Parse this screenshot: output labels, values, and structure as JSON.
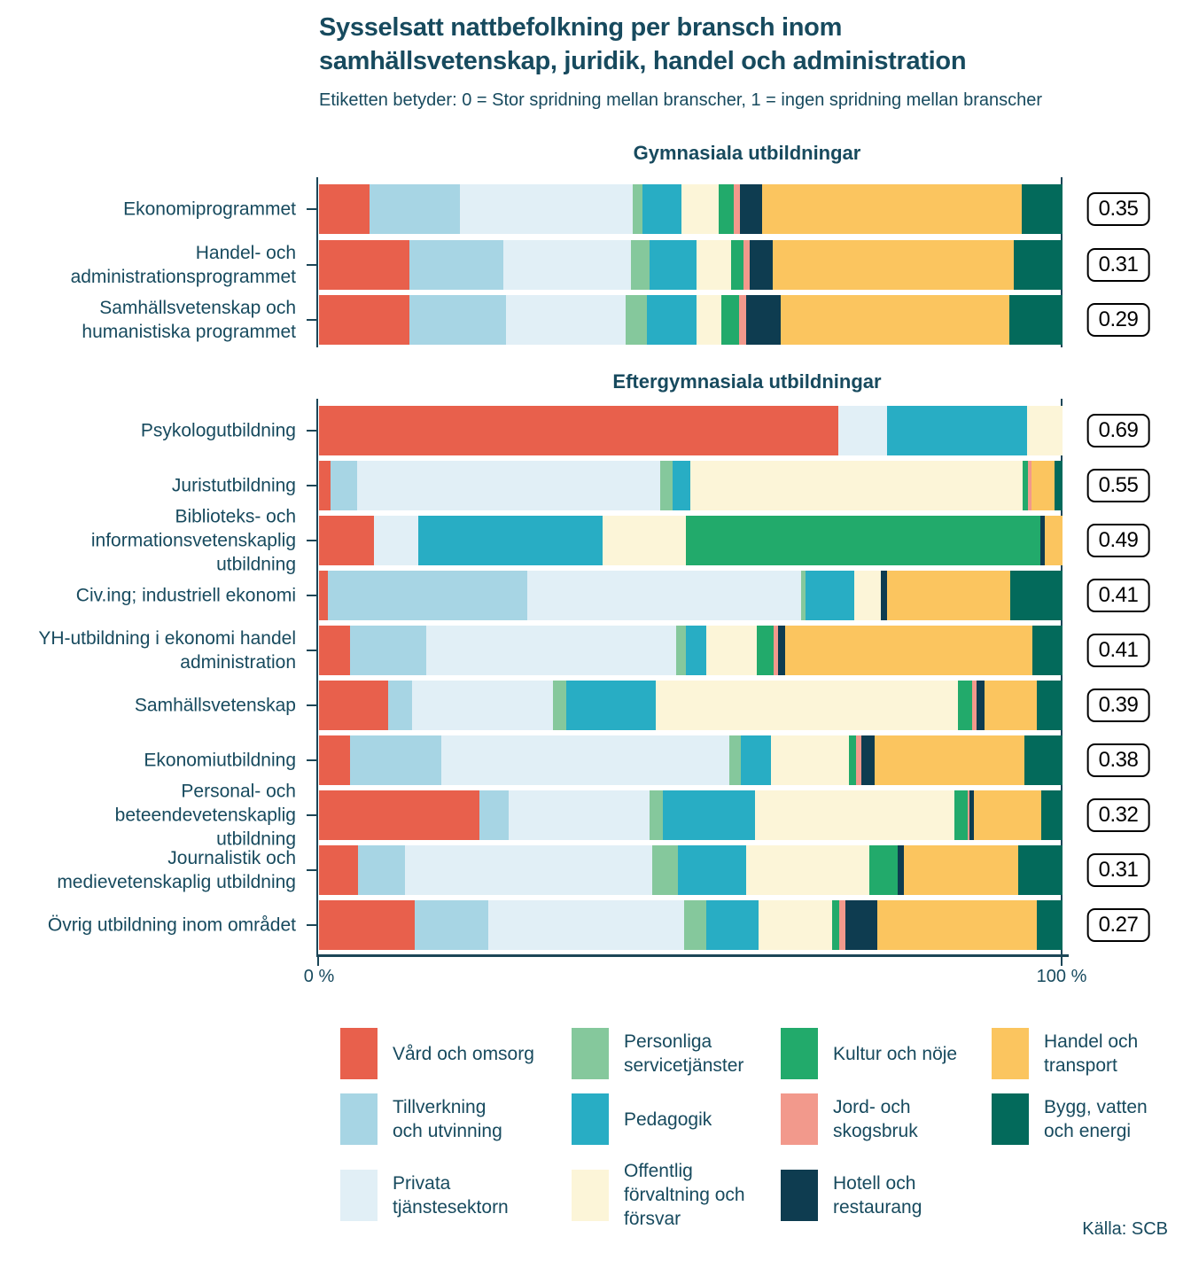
{
  "title": "Sysselsatt nattbefolkning per bransch inom\nsamhällsvetenskap, juridik, handel och administration",
  "subtitle": "Etiketten betyder: 0 = Stor spridning mellan branscher, 1 = ingen spridning mellan branscher",
  "source": "Källa: SCB",
  "industries": [
    {
      "id": "vard",
      "label": "Vård och omsorg",
      "color": "#E8604C"
    },
    {
      "id": "tillv",
      "label": "Tillverkning och utvinning",
      "color": "#A7D5E4"
    },
    {
      "id": "privata",
      "label": "Privata tjänstesektorn",
      "color": "#E1EFF6"
    },
    {
      "id": "personliga",
      "label": "Personliga servicetjänster",
      "color": "#85C89C"
    },
    {
      "id": "pedagogik",
      "label": "Pedagogik",
      "color": "#28ADC4"
    },
    {
      "id": "offentlig",
      "label": "Offentlig förvaltning och försvar",
      "color": "#FCF5D8"
    },
    {
      "id": "kultur",
      "label": "Kultur och nöje",
      "color": "#22AA6B"
    },
    {
      "id": "jord",
      "label": "Jord- och skogsbruk",
      "color": "#F2998C"
    },
    {
      "id": "hotell",
      "label": "Hotell och restaurang",
      "color": "#0E3C50"
    },
    {
      "id": "handel",
      "label": "Handel och transport",
      "color": "#FBC55F"
    },
    {
      "id": "bygg",
      "label": "Bygg, vatten och energi",
      "color": "#036A5B"
    }
  ],
  "legend": {
    "items": [
      {
        "id": "vard",
        "label": "Vård och omsorg"
      },
      {
        "id": "personliga",
        "label": "Personliga\nservicetjänster"
      },
      {
        "id": "kultur",
        "label": "Kultur och nöje"
      },
      {
        "id": "handel",
        "label": "Handel och\ntransport"
      },
      {
        "id": "tillv",
        "label": "Tillverkning\noch utvinning"
      },
      {
        "id": "pedagogik",
        "label": "Pedagogik"
      },
      {
        "id": "jord",
        "label": "Jord- och\nskogsbruk"
      },
      {
        "id": "bygg",
        "label": "Bygg, vatten\noch energi"
      },
      {
        "id": "privata",
        "label": "Privata\ntjänstesektorn"
      },
      {
        "id": "offentlig",
        "label": "Offentlig\nförvaltning och\nförsvar"
      },
      {
        "id": "hotell",
        "label": "Hotell och\nrestaurang"
      }
    ]
  },
  "chart_data": {
    "type": "bar",
    "variant": "horizontal-stacked-100pct",
    "unit": "percent of employed per industry",
    "x_axis": {
      "min_label": "0 %",
      "max_label": "100 %",
      "range": [
        0,
        100
      ],
      "grid": false
    },
    "legend_position": "bottom",
    "groups": [
      {
        "title": "Gymnasiala utbildningar",
        "rows": [
          {
            "label": "Ekonomiprogrammet",
            "value": "0.35",
            "segments": [
              [
                "vard",
                6.8
              ],
              [
                "tillv",
                12.2
              ],
              [
                "privata",
                23.2
              ],
              [
                "personliga",
                1.3
              ],
              [
                "pedagogik",
                5.2
              ],
              [
                "offentlig",
                5.0
              ],
              [
                "kultur",
                2.1
              ],
              [
                "jord",
                0.8
              ],
              [
                "hotell",
                3.0
              ],
              [
                "handel",
                34.9
              ],
              [
                "bygg",
                5.5
              ]
            ]
          },
          {
            "label": "Handel- och\nadministrationsprogrammet",
            "value": "0.31",
            "segments": [
              [
                "vard",
                12.1
              ],
              [
                "tillv",
                12.7
              ],
              [
                "privata",
                17.1
              ],
              [
                "personliga",
                2.5
              ],
              [
                "pedagogik",
                6.4
              ],
              [
                "offentlig",
                4.6
              ],
              [
                "kultur",
                1.7
              ],
              [
                "jord",
                0.8
              ],
              [
                "hotell",
                3.1
              ],
              [
                "handel",
                32.5
              ],
              [
                "bygg",
                6.5
              ]
            ]
          },
          {
            "label": "Samhällsvetenskap och\nhumanistiska programmet",
            "value": "0.29",
            "segments": [
              [
                "vard",
                12.2
              ],
              [
                "tillv",
                12.9
              ],
              [
                "privata",
                16.2
              ],
              [
                "personliga",
                2.8
              ],
              [
                "pedagogik",
                6.7
              ],
              [
                "offentlig",
                3.3
              ],
              [
                "kultur",
                2.4
              ],
              [
                "jord",
                1.0
              ],
              [
                "hotell",
                4.6
              ],
              [
                "handel",
                30.8
              ],
              [
                "bygg",
                7.1
              ]
            ]
          }
        ]
      },
      {
        "title": "Eftergymnasiala utbildningar",
        "rows": [
          {
            "label": "Psykologutbildning",
            "value": "0.69",
            "segments": [
              [
                "vard",
                69.8
              ],
              [
                "privata",
                6.6
              ],
              [
                "pedagogik",
                18.8
              ],
              [
                "offentlig",
                4.8
              ]
            ]
          },
          {
            "label": "Juristutbildning",
            "value": "0.55",
            "segments": [
              [
                "vard",
                1.6
              ],
              [
                "tillv",
                3.5
              ],
              [
                "privata",
                40.8
              ],
              [
                "personliga",
                1.7
              ],
              [
                "pedagogik",
                2.4
              ],
              [
                "offentlig",
                44.7
              ],
              [
                "kultur",
                0.6
              ],
              [
                "jord",
                0.5
              ],
              [
                "handel",
                3.1
              ],
              [
                "bygg",
                1.1
              ]
            ]
          },
          {
            "label": "Biblioteks- och\ninformationsvetenskaplig\nutbildning",
            "value": "0.49",
            "segments": [
              [
                "vard",
                7.4
              ],
              [
                "privata",
                6.0
              ],
              [
                "pedagogik",
                24.8
              ],
              [
                "offentlig",
                11.1
              ],
              [
                "kultur",
                47.7
              ],
              [
                "hotell",
                0.6
              ],
              [
                "handel",
                2.4
              ]
            ]
          },
          {
            "label": "Civ.ing; industriell ekonomi",
            "value": "0.41",
            "segments": [
              [
                "vard",
                1.2
              ],
              [
                "tillv",
                26.8
              ],
              [
                "privata",
                36.9
              ],
              [
                "personliga",
                0.5
              ],
              [
                "pedagogik",
                6.6
              ],
              [
                "offentlig",
                3.6
              ],
              [
                "hotell",
                0.8
              ],
              [
                "handel",
                16.6
              ],
              [
                "bygg",
                7.0
              ]
            ]
          },
          {
            "label": "YH-utbildning i ekonomi handel\nadministration",
            "value": "0.41",
            "segments": [
              [
                "vard",
                4.2
              ],
              [
                "tillv",
                10.2
              ],
              [
                "privata",
                33.6
              ],
              [
                "personliga",
                1.3
              ],
              [
                "pedagogik",
                2.8
              ],
              [
                "offentlig",
                6.8
              ],
              [
                "kultur",
                2.3
              ],
              [
                "jord",
                0.6
              ],
              [
                "hotell",
                0.9
              ],
              [
                "handel",
                33.3
              ],
              [
                "bygg",
                4.0
              ]
            ]
          },
          {
            "label": "Samhällsvetenskap",
            "value": "0.39",
            "segments": [
              [
                "vard",
                9.3
              ],
              [
                "tillv",
                3.2
              ],
              [
                "privata",
                19.0
              ],
              [
                "personliga",
                1.8
              ],
              [
                "pedagogik",
                12.0
              ],
              [
                "offentlig",
                40.6
              ],
              [
                "kultur",
                2.0
              ],
              [
                "jord",
                0.6
              ],
              [
                "hotell",
                1.0
              ],
              [
                "handel",
                7.0
              ],
              [
                "bygg",
                3.5
              ]
            ]
          },
          {
            "label": "Ekonomiutbildning",
            "value": "0.38",
            "segments": [
              [
                "vard",
                4.2
              ],
              [
                "tillv",
                12.3
              ],
              [
                "privata",
                38.7
              ],
              [
                "personliga",
                1.5
              ],
              [
                "pedagogik",
                4.1
              ],
              [
                "offentlig",
                10.5
              ],
              [
                "kultur",
                0.9
              ],
              [
                "jord",
                0.8
              ],
              [
                "hotell",
                1.7
              ],
              [
                "handel",
                20.2
              ],
              [
                "bygg",
                5.1
              ]
            ]
          },
          {
            "label": "Personal- och\nbeteendevetenskaplig\nutbildning",
            "value": "0.32",
            "segments": [
              [
                "vard",
                21.6
              ],
              [
                "tillv",
                3.9
              ],
              [
                "privata",
                19.0
              ],
              [
                "personliga",
                1.7
              ],
              [
                "pedagogik",
                12.4
              ],
              [
                "offentlig",
                26.9
              ],
              [
                "kultur",
                1.7
              ],
              [
                "jord",
                0.3
              ],
              [
                "hotell",
                0.6
              ],
              [
                "handel",
                9.1
              ],
              [
                "bygg",
                2.8
              ]
            ]
          },
          {
            "label": "Journalistik och\nmedievetenskaplig utbildning",
            "value": "0.31",
            "segments": [
              [
                "vard",
                5.2
              ],
              [
                "tillv",
                6.4
              ],
              [
                "privata",
                33.2
              ],
              [
                "personliga",
                3.5
              ],
              [
                "pedagogik",
                9.2
              ],
              [
                "offentlig",
                16.5
              ],
              [
                "kultur",
                3.8
              ],
              [
                "hotell",
                0.9
              ],
              [
                "handel",
                15.4
              ],
              [
                "bygg",
                5.9
              ]
            ]
          },
          {
            "label": "Övrig utbildning inom området",
            "value": "0.27",
            "segments": [
              [
                "vard",
                12.9
              ],
              [
                "tillv",
                9.9
              ],
              [
                "privata",
                26.3
              ],
              [
                "personliga",
                3.0
              ],
              [
                "pedagogik",
                7.0
              ],
              [
                "offentlig",
                9.9
              ],
              [
                "kultur",
                1.0
              ],
              [
                "jord",
                0.8
              ],
              [
                "hotell",
                4.3
              ],
              [
                "handel",
                21.4
              ],
              [
                "bygg",
                3.5
              ]
            ]
          }
        ]
      }
    ]
  }
}
